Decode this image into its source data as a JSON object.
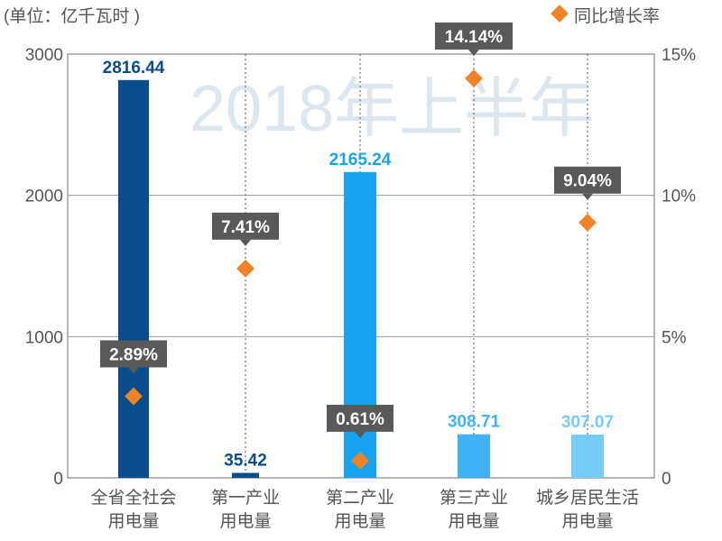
{
  "chart_data": {
    "type": "bar",
    "unit_label": "(单位：亿千瓦时 )",
    "categories": [
      [
        "全省全社会",
        "用电量"
      ],
      [
        "第一产业",
        "用电量"
      ],
      [
        "第二产业",
        "用电量"
      ],
      [
        "第三产业",
        "用电量"
      ],
      [
        "城乡居民生活",
        "用电量"
      ]
    ],
    "values": [
      2816.44,
      35.42,
      2165.24,
      308.71,
      307.07
    ],
    "value_labels": [
      "2816.44",
      "35.42",
      "2165.24",
      "308.71",
      "307.07"
    ],
    "bar_colors": [
      "#0a4d8c",
      "#0a4d8c",
      "#17a3f2",
      "#3fb3f5",
      "#76ccf8"
    ],
    "value_label_colors": [
      "#0a4d8c",
      "#0a4d8c",
      "#17a3f2",
      "#3fb3f5",
      "#76ccf8"
    ],
    "growth_series": {
      "name": "同比增长率",
      "values": [
        2.89,
        7.41,
        0.61,
        14.14,
        9.04
      ],
      "labels": [
        "2.89%",
        "7.41%",
        "0.61%",
        "14.14%",
        "9.04%"
      ],
      "color": "#f08327"
    },
    "ylim": [
      0,
      3000
    ],
    "yticks": [
      "0",
      "1000",
      "2000",
      "3000"
    ],
    "y2lim": [
      0,
      15
    ],
    "y2ticks": [
      "0",
      "5%",
      "10%",
      "15%"
    ],
    "watermark": "2018年上半年",
    "legend_position": "top-right",
    "grid": true
  }
}
